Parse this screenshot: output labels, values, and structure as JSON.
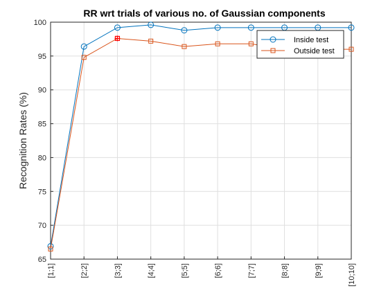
{
  "chart_data": {
    "type": "line",
    "title": "RR wrt trials of various no. of Gaussian components",
    "xlabel": "",
    "ylabel": "Recognition Rates (%)",
    "categories": [
      "[1;1]",
      "[2;2]",
      "[3;3]",
      "[4;4]",
      "[5;5]",
      "[6;6]",
      "[7;7]",
      "[8;8]",
      "[9;9]",
      "[10;10]"
    ],
    "ylim": [
      65,
      100
    ],
    "yticks": [
      65,
      70,
      75,
      80,
      85,
      90,
      95,
      100
    ],
    "grid": true,
    "legend_position": "top-right",
    "series": [
      {
        "name": "Inside test",
        "marker": "circle",
        "color": "#0072BD",
        "values": [
          66.9,
          96.4,
          99.2,
          99.6,
          98.8,
          99.2,
          99.2,
          99.2,
          99.2,
          99.2
        ]
      },
      {
        "name": "Outside test",
        "marker": "square",
        "color": "#D95319",
        "values": [
          66.5,
          94.8,
          97.6,
          97.2,
          96.4,
          96.8,
          96.8,
          96.0,
          96.0,
          96.0
        ]
      }
    ],
    "annotations": [
      {
        "type": "highlight-marker",
        "series": "Outside test",
        "category": "[3;3]",
        "value": 97.6,
        "color": "#FF0000"
      }
    ]
  }
}
